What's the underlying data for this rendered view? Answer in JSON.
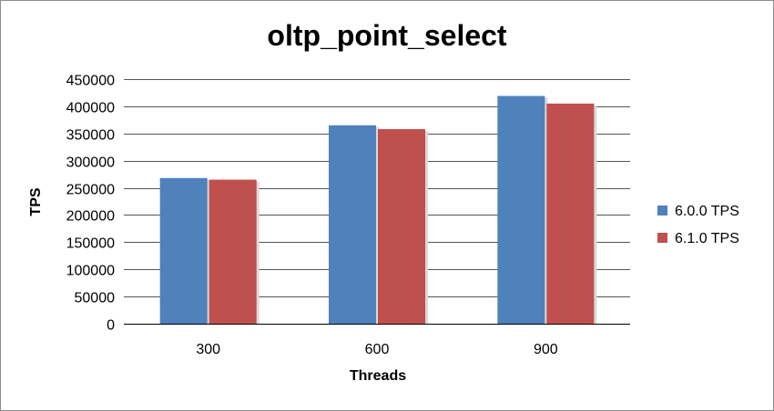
{
  "chart_data": {
    "type": "bar",
    "title": "oltp_point_select",
    "xlabel": "Threads",
    "ylabel": "TPS",
    "categories": [
      "300",
      "600",
      "900"
    ],
    "series": [
      {
        "name": "6.0.0 TPS",
        "color": "#4F81BD",
        "values": [
          268000,
          365000,
          419000
        ]
      },
      {
        "name": "6.1.0 TPS",
        "color": "#C0504D",
        "values": [
          265000,
          358000,
          405000
        ]
      }
    ],
    "ylim": [
      0,
      450000
    ],
    "yticks": [
      0,
      50000,
      100000,
      150000,
      200000,
      250000,
      300000,
      350000,
      400000,
      450000
    ],
    "grid": true,
    "legend_position": "right"
  }
}
